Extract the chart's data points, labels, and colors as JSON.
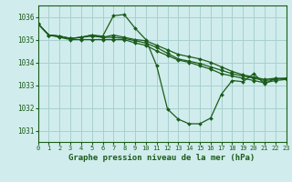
{
  "title": "Graphe pression niveau de la mer (hPa)",
  "bg_color": "#d0ecec",
  "grid_color": "#a8d0d0",
  "line_color": "#1a5c1a",
  "xlim": [
    0,
    23
  ],
  "ylim": [
    1030.5,
    1036.5
  ],
  "yticks": [
    1031,
    1032,
    1033,
    1034,
    1035,
    1036
  ],
  "xticks": [
    0,
    1,
    2,
    3,
    4,
    5,
    6,
    7,
    8,
    9,
    10,
    11,
    12,
    13,
    14,
    15,
    16,
    17,
    18,
    19,
    20,
    21,
    22,
    23
  ],
  "series": [
    {
      "x": [
        0,
        1,
        2,
        3,
        4,
        5,
        6,
        7,
        8,
        9,
        10,
        11,
        12,
        13,
        14,
        15,
        16,
        17,
        18,
        19,
        20,
        21,
        22
      ],
      "y": [
        1035.7,
        1035.2,
        1035.15,
        1035.05,
        1035.1,
        1035.2,
        1035.15,
        1036.05,
        1036.1,
        1035.5,
        1035.0,
        1033.85,
        1031.95,
        1031.5,
        1031.3,
        1031.3,
        1031.55,
        1032.6,
        1033.2,
        1033.15,
        1033.5,
        1033.05,
        1033.3
      ]
    },
    {
      "x": [
        0,
        1,
        2,
        3,
        4,
        5,
        6,
        7,
        8,
        9,
        10,
        11,
        12,
        13,
        14,
        15,
        16,
        17,
        18,
        19,
        20,
        21,
        22,
        23
      ],
      "y": [
        1035.7,
        1035.2,
        1035.15,
        1035.05,
        1035.1,
        1035.2,
        1035.1,
        1035.2,
        1035.1,
        1035.0,
        1034.95,
        1034.75,
        1034.55,
        1034.35,
        1034.25,
        1034.15,
        1034.0,
        1033.8,
        1033.6,
        1033.45,
        1033.35,
        1033.25,
        1033.3,
        1033.3
      ]
    },
    {
      "x": [
        0,
        1,
        2,
        3,
        4,
        5,
        6,
        7,
        8,
        9,
        10,
        11,
        12,
        13,
        14,
        15,
        16,
        17,
        18,
        19,
        20,
        21,
        22,
        23
      ],
      "y": [
        1035.7,
        1035.2,
        1035.1,
        1035.0,
        1035.0,
        1035.0,
        1035.0,
        1035.0,
        1035.0,
        1034.85,
        1034.75,
        1034.5,
        1034.3,
        1034.1,
        1034.0,
        1033.85,
        1033.7,
        1033.5,
        1033.4,
        1033.3,
        1033.2,
        1033.1,
        1033.2,
        1033.25
      ]
    },
    {
      "x": [
        0,
        1,
        2,
        3,
        4,
        5,
        6,
        7,
        8,
        9,
        10,
        11,
        12,
        13,
        14,
        15,
        16,
        17,
        18,
        19,
        20,
        21,
        22,
        23
      ],
      "y": [
        1035.7,
        1035.2,
        1035.15,
        1035.05,
        1035.1,
        1035.15,
        1035.1,
        1035.1,
        1035.05,
        1034.95,
        1034.85,
        1034.65,
        1034.4,
        1034.15,
        1034.05,
        1033.95,
        1033.8,
        1033.65,
        1033.5,
        1033.4,
        1033.3,
        1033.2,
        1033.25,
        1033.3
      ]
    }
  ]
}
